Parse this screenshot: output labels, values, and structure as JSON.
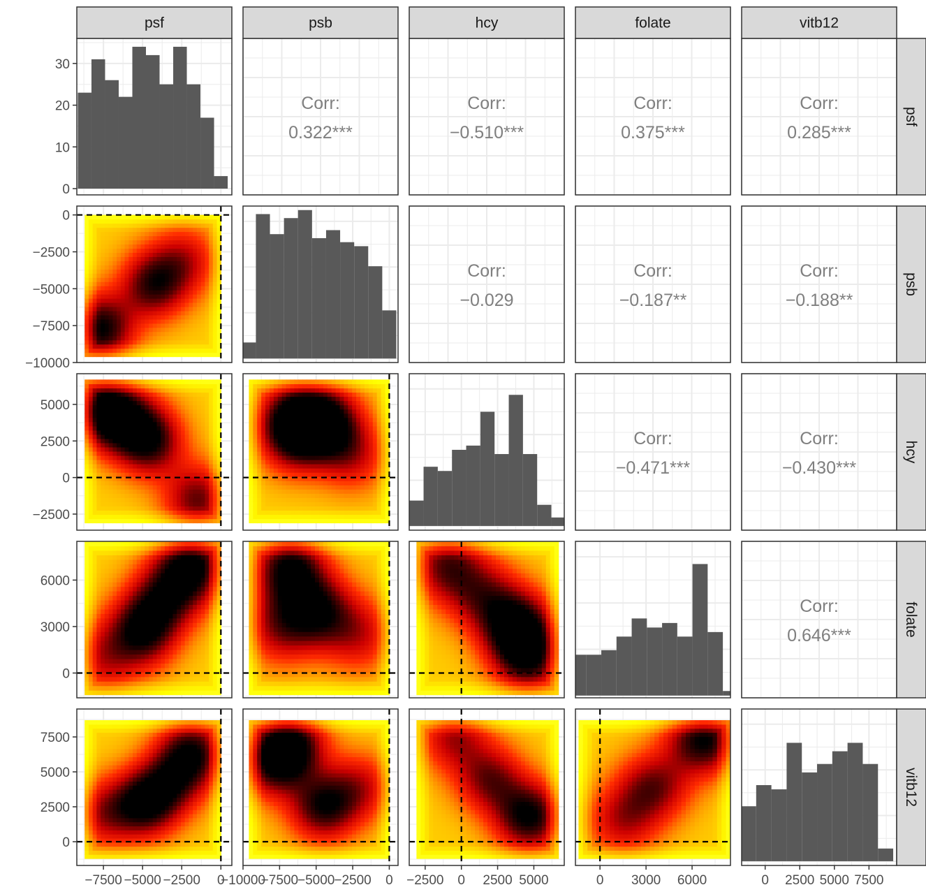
{
  "chart_data": {
    "type": "pairs",
    "variables": [
      "psf",
      "psb",
      "hcy",
      "folate",
      "vitb12"
    ],
    "axis_ticks": {
      "psf": [
        -7500,
        -5000,
        -2500,
        0
      ],
      "psb": [
        -10000,
        -7500,
        -5000,
        -2500,
        0
      ],
      "hcy": [
        -2500,
        0,
        2500,
        5000
      ],
      "folate": [
        0,
        3000,
        6000
      ],
      "vitb12": [
        0,
        2500,
        5000,
        7500
      ]
    },
    "axis_tick_labels": {
      "psf": [
        "−7500",
        "−5000",
        "−2500",
        "0"
      ],
      "psb": [
        "−10000",
        "−7500",
        "−5000",
        "−2500",
        "0"
      ],
      "hcy": [
        "−2500",
        "0",
        "2500",
        "5000"
      ],
      "folate": [
        "0",
        "3000",
        "6000"
      ],
      "vitb12": [
        "0",
        "2500",
        "5000",
        "7500"
      ]
    },
    "axis_ranges": {
      "psf": [
        -9200,
        700
      ],
      "psb": [
        -10000,
        600
      ],
      "hcy": [
        -3600,
        7100
      ],
      "folate": [
        -1600,
        8500
      ],
      "vitb12": [
        -1700,
        9500
      ]
    },
    "density_ranges": {
      "psf": [
        -8700,
        0
      ],
      "psb": [
        -9600,
        0
      ],
      "hcy": [
        -3100,
        6700
      ],
      "folate": [
        -1400,
        8500
      ],
      "vitb12": [
        -1200,
        8700
      ]
    },
    "histograms": {
      "psf": {
        "ylim": [
          -1.5,
          36
        ],
        "y_ticks": [
          0,
          10,
          20,
          30
        ],
        "counts": [
          23,
          31,
          26,
          22,
          34,
          32,
          25,
          34,
          25,
          17,
          3
        ]
      },
      "psb": {
        "ylim": [
          -1,
          38
        ],
        "counts": [
          4,
          36,
          31,
          35,
          37,
          30,
          32,
          29,
          28,
          23,
          12
        ]
      },
      "hcy": {
        "ylim": [
          -1,
          36
        ],
        "counts": [
          6,
          14,
          13,
          18,
          19,
          27,
          17,
          31,
          17,
          5,
          2
        ]
      },
      "folate": {
        "ylim": [
          -0.5,
          34
        ],
        "counts": [
          9,
          9,
          10,
          13,
          17,
          15,
          16,
          13,
          29,
          14,
          1
        ]
      },
      "vitb12": {
        "ylim": [
          -1,
          36
        ],
        "counts": [
          13,
          18,
          17,
          28,
          21,
          23,
          26,
          28,
          23,
          3
        ]
      }
    },
    "correlations": [
      {
        "row": "psf",
        "col": "psb",
        "label": "Corr:",
        "value": "0.322***"
      },
      {
        "row": "psf",
        "col": "hcy",
        "label": "Corr:",
        "value": "−0.510***"
      },
      {
        "row": "psf",
        "col": "folate",
        "label": "Corr:",
        "value": "0.375***"
      },
      {
        "row": "psf",
        "col": "vitb12",
        "label": "Corr:",
        "value": "0.285***"
      },
      {
        "row": "psb",
        "col": "hcy",
        "label": "Corr:",
        "value": "−0.029"
      },
      {
        "row": "psb",
        "col": "folate",
        "label": "Corr:",
        "value": "−0.187**"
      },
      {
        "row": "psb",
        "col": "vitb12",
        "label": "Corr:",
        "value": "−0.188**"
      },
      {
        "row": "hcy",
        "col": "folate",
        "label": "Corr:",
        "value": "−0.471***"
      },
      {
        "row": "hcy",
        "col": "vitb12",
        "label": "Corr:",
        "value": "−0.430***"
      },
      {
        "row": "folate",
        "col": "vitb12",
        "label": "Corr:",
        "value": "0.646***"
      }
    ],
    "density_hotspots": {
      "psb|psf": [
        {
          "x": -7700,
          "y": -7700,
          "w": 1
        },
        {
          "x": -4300,
          "y": -4700,
          "w": 0.85
        },
        {
          "x": -2300,
          "y": -3000,
          "w": 0.5
        }
      ],
      "hcy|psf": [
        {
          "x": -7600,
          "y": 4700,
          "w": 1
        },
        {
          "x": -4500,
          "y": 2500,
          "w": 0.85
        },
        {
          "x": -1500,
          "y": -1500,
          "w": 0.75
        },
        {
          "x": -6000,
          "y": 3800,
          "w": 0.6
        }
      ],
      "hcy|psb": [
        {
          "x": -6500,
          "y": 4200,
          "w": 0.85
        },
        {
          "x": -4300,
          "y": 3800,
          "w": 1
        },
        {
          "x": -6500,
          "y": 2500,
          "w": 0.6
        },
        {
          "x": -2500,
          "y": 1500,
          "w": 0.5
        }
      ],
      "folate|psf": [
        {
          "x": -1800,
          "y": 7000,
          "w": 1
        },
        {
          "x": -5000,
          "y": 2800,
          "w": 0.95
        },
        {
          "x": -3500,
          "y": 5000,
          "w": 0.7
        },
        {
          "x": -7500,
          "y": 1000,
          "w": 0.5
        }
      ],
      "folate|psb": [
        {
          "x": -6800,
          "y": 6800,
          "w": 1
        },
        {
          "x": -4800,
          "y": 4000,
          "w": 0.85
        },
        {
          "x": -7500,
          "y": 3000,
          "w": 0.6
        },
        {
          "x": -2000,
          "y": 2500,
          "w": 0.5
        }
      ],
      "folate|hcy": [
        {
          "x": 3800,
          "y": 3000,
          "w": 1
        },
        {
          "x": 4700,
          "y": 1000,
          "w": 0.8
        },
        {
          "x": -1000,
          "y": 7000,
          "w": 0.75
        },
        {
          "x": 1500,
          "y": 5000,
          "w": 0.6
        }
      ],
      "vitb12|psf": [
        {
          "x": -4800,
          "y": 2800,
          "w": 1
        },
        {
          "x": -1800,
          "y": 6500,
          "w": 0.85
        },
        {
          "x": -7500,
          "y": 2000,
          "w": 0.55
        },
        {
          "x": -3000,
          "y": 4500,
          "w": 0.6
        }
      ],
      "vitb12|psb": [
        {
          "x": -6800,
          "y": 7000,
          "w": 1
        },
        {
          "x": -4500,
          "y": 2500,
          "w": 0.9
        },
        {
          "x": -8000,
          "y": 5500,
          "w": 0.7
        },
        {
          "x": -2000,
          "y": 4000,
          "w": 0.5
        }
      ],
      "vitb12|hcy": [
        {
          "x": 4700,
          "y": 1800,
          "w": 1
        },
        {
          "x": 2000,
          "y": 4500,
          "w": 0.7
        },
        {
          "x": -500,
          "y": 7500,
          "w": 0.6
        }
      ],
      "vitb12|folate": [
        {
          "x": 6800,
          "y": 7300,
          "w": 1
        },
        {
          "x": 3500,
          "y": 4000,
          "w": 0.7
        },
        {
          "x": 1500,
          "y": 1500,
          "w": 0.55
        }
      ]
    },
    "reference_lines": {
      "x": 0,
      "y": 0,
      "style": "dashed",
      "color": "#000000"
    },
    "density_palette": [
      "#ffffff",
      "#ffff00",
      "#ff9900",
      "#ff2a00",
      "#cc0000",
      "#550000",
      "#000000"
    ],
    "colors": {
      "histogram": "#595959",
      "strip_bg": "#d9d9d9",
      "grid": "#ebebeb",
      "panel_border": "#333333"
    }
  }
}
